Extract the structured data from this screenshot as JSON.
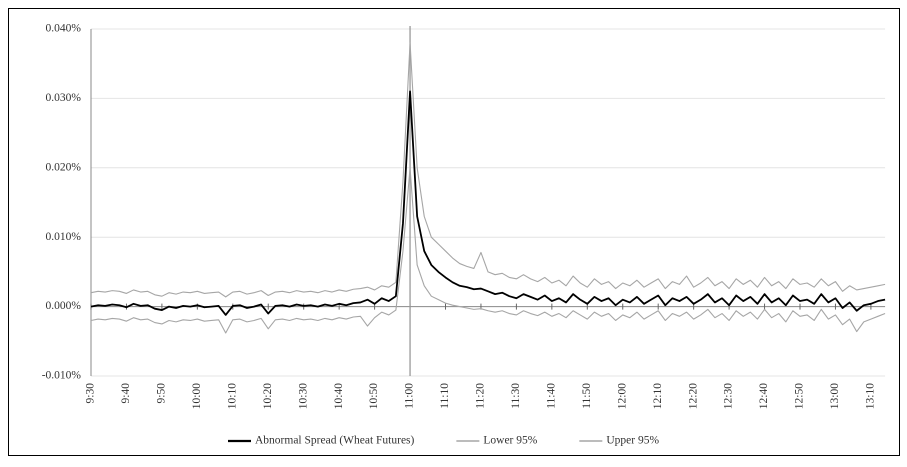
{
  "chart_data": {
    "type": "line",
    "categories": [
      "9:30",
      null,
      null,
      null,
      null,
      "9:40",
      null,
      null,
      null,
      null,
      "9:50",
      null,
      null,
      null,
      null,
      "10:00",
      null,
      null,
      null,
      null,
      "10:10",
      null,
      null,
      null,
      null,
      "10:20",
      null,
      null,
      null,
      null,
      "10:30",
      null,
      null,
      null,
      null,
      "10:40",
      null,
      null,
      null,
      null,
      "10:50",
      null,
      null,
      null,
      null,
      "11:00",
      null,
      null,
      null,
      null,
      "11:10",
      null,
      null,
      null,
      null,
      "11:20",
      null,
      null,
      null,
      null,
      "11:30",
      null,
      null,
      null,
      null,
      "11:40",
      null,
      null,
      null,
      null,
      "11:50",
      null,
      null,
      null,
      null,
      "12:00",
      null,
      null,
      null,
      null,
      "12:10",
      null,
      null,
      null,
      null,
      "12:20",
      null,
      null,
      null,
      null,
      "12:30",
      null,
      null,
      null,
      null,
      "12:40",
      null,
      null,
      null,
      null,
      "12:50",
      null,
      null,
      null,
      null,
      "13:00",
      null,
      null,
      null,
      null,
      "13:10",
      null,
      null
    ],
    "series": [
      {
        "name": "Abnormal Spread (Wheat Futures)",
        "color": "#000000",
        "width": 1.8,
        "values": [
          0.0,
          0.0002,
          0.0001,
          0.0003,
          0.0002,
          -0.0001,
          0.0004,
          0.0001,
          0.0002,
          -0.0003,
          -0.0005,
          0.0,
          -0.0002,
          0.0001,
          0.0,
          0.0002,
          -0.0001,
          0.0,
          0.0001,
          -0.0012,
          0.0001,
          0.0002,
          -0.0002,
          0.0,
          0.0003,
          -0.001,
          0.0001,
          0.0002,
          0.0,
          0.0003,
          0.0001,
          0.0002,
          0.0,
          0.0003,
          0.0001,
          0.0004,
          0.0002,
          0.0005,
          0.0006,
          0.001,
          0.0004,
          0.0012,
          0.0008,
          0.0015,
          0.012,
          0.031,
          0.013,
          0.008,
          0.006,
          0.005,
          0.0042,
          0.0035,
          0.003,
          0.0028,
          0.0025,
          0.0026,
          0.0022,
          0.0018,
          0.002,
          0.0015,
          0.0012,
          0.0018,
          0.0014,
          0.001,
          0.0016,
          0.0008,
          0.0012,
          0.0006,
          0.0018,
          0.001,
          0.0004,
          0.0014,
          0.0008,
          0.0012,
          0.0002,
          0.001,
          0.0006,
          0.0014,
          0.0004,
          0.001,
          0.0016,
          0.0002,
          0.0012,
          0.0008,
          0.0014,
          0.0004,
          0.001,
          0.0018,
          0.0006,
          0.0012,
          0.0002,
          0.0016,
          0.0008,
          0.0014,
          0.0004,
          0.0018,
          0.0006,
          0.0012,
          0.0002,
          0.0016,
          0.0008,
          0.001,
          0.0004,
          0.0018,
          0.0006,
          0.0012,
          -0.0002,
          0.0006,
          -0.0006,
          0.0002,
          0.0004,
          0.0008,
          0.001
        ]
      },
      {
        "name": "Lower 95%",
        "color": "#a6a6a6",
        "width": 1.1,
        "values": [
          -0.002,
          -0.0018,
          -0.0019,
          -0.0017,
          -0.0018,
          -0.0021,
          -0.0016,
          -0.0019,
          -0.0018,
          -0.0023,
          -0.0025,
          -0.002,
          -0.0022,
          -0.0019,
          -0.002,
          -0.0018,
          -0.0021,
          -0.002,
          -0.0019,
          -0.0038,
          -0.0019,
          -0.0018,
          -0.0022,
          -0.002,
          -0.0017,
          -0.0032,
          -0.0019,
          -0.0018,
          -0.002,
          -0.0017,
          -0.0019,
          -0.0018,
          -0.002,
          -0.0017,
          -0.0019,
          -0.0016,
          -0.0018,
          -0.0015,
          -0.0014,
          -0.0028,
          -0.0016,
          -0.0008,
          -0.0012,
          -0.0005,
          0.008,
          0.02,
          0.006,
          0.003,
          0.0015,
          0.001,
          0.0005,
          0.0002,
          0.0,
          -0.0002,
          -0.0004,
          -0.0003,
          -0.0006,
          -0.0008,
          -0.0006,
          -0.001,
          -0.0012,
          -0.0006,
          -0.001,
          -0.0013,
          -0.0008,
          -0.0014,
          -0.001,
          -0.0016,
          -0.0006,
          -0.0012,
          -0.0018,
          -0.0008,
          -0.0014,
          -0.001,
          -0.002,
          -0.0012,
          -0.0016,
          -0.0008,
          -0.0018,
          -0.0012,
          -0.0006,
          -0.002,
          -0.001,
          -0.0014,
          -0.0008,
          -0.0018,
          -0.0012,
          -0.0004,
          -0.0016,
          -0.001,
          -0.002,
          -0.0006,
          -0.0014,
          -0.0008,
          -0.0018,
          -0.0004,
          -0.0016,
          -0.001,
          -0.0022,
          -0.0006,
          -0.0014,
          -0.0012,
          -0.002,
          -0.0004,
          -0.0018,
          -0.0012,
          -0.0026,
          -0.0018,
          -0.0036,
          -0.0022,
          -0.0018,
          -0.0014,
          -0.001
        ]
      },
      {
        "name": "Upper 95%",
        "color": "#a6a6a6",
        "width": 1.1,
        "values": [
          0.002,
          0.0022,
          0.0021,
          0.0023,
          0.0022,
          0.0019,
          0.0024,
          0.0021,
          0.0022,
          0.0017,
          0.0015,
          0.002,
          0.0018,
          0.0021,
          0.002,
          0.0022,
          0.0019,
          0.002,
          0.0021,
          0.0014,
          0.0021,
          0.0022,
          0.0018,
          0.002,
          0.0023,
          0.0016,
          0.0021,
          0.0022,
          0.002,
          0.0023,
          0.0021,
          0.0022,
          0.002,
          0.0023,
          0.0021,
          0.0024,
          0.0022,
          0.0025,
          0.0026,
          0.0028,
          0.0024,
          0.003,
          0.0028,
          0.0035,
          0.018,
          0.038,
          0.02,
          0.013,
          0.01,
          0.009,
          0.008,
          0.007,
          0.0062,
          0.0058,
          0.0055,
          0.0078,
          0.005,
          0.0046,
          0.0048,
          0.0042,
          0.004,
          0.0046,
          0.004,
          0.0036,
          0.0042,
          0.0034,
          0.0038,
          0.003,
          0.0044,
          0.0034,
          0.0028,
          0.004,
          0.0032,
          0.0036,
          0.0026,
          0.0034,
          0.003,
          0.0038,
          0.0028,
          0.0034,
          0.004,
          0.0026,
          0.0036,
          0.0032,
          0.0044,
          0.0028,
          0.0034,
          0.0042,
          0.003,
          0.0036,
          0.0026,
          0.004,
          0.0032,
          0.0038,
          0.0028,
          0.0042,
          0.003,
          0.0036,
          0.0026,
          0.004,
          0.0032,
          0.0034,
          0.0028,
          0.004,
          0.003,
          0.0036,
          0.0022,
          0.003,
          0.0024,
          0.0026,
          0.0028,
          0.003,
          0.0032
        ]
      }
    ],
    "ylim": [
      -0.01,
      0.04
    ],
    "yticks": [
      {
        "value": -0.01,
        "label": "-0.010%"
      },
      {
        "value": 0,
        "label": "0.000%"
      },
      {
        "value": 0.01,
        "label": "0.010%"
      },
      {
        "value": 0.02,
        "label": "0.020%"
      },
      {
        "value": 0.03,
        "label": "0.030%"
      },
      {
        "value": 0.04,
        "label": "0.040%"
      }
    ],
    "grid": true,
    "vertical_line": "11:00",
    "legend": "bottom"
  }
}
